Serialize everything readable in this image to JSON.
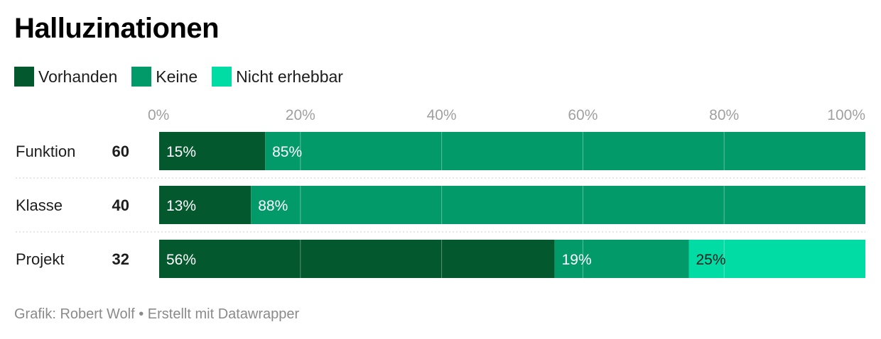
{
  "header": {
    "title": "Halluzinationen"
  },
  "legend": [
    {
      "label": "Vorhanden",
      "color": "#03582e"
    },
    {
      "label": "Keine",
      "color": "#039a6a"
    },
    {
      "label": "Nicht erhebbar",
      "color": "#01dca4"
    }
  ],
  "footer": {
    "credit": "Grafik: Robert Wolf • Erstellt mit Datawrapper"
  },
  "chart_data": {
    "type": "bar",
    "orientation": "horizontal",
    "stacked": true,
    "title": "Halluzinationen",
    "categories": [
      "Funktion",
      "Klasse",
      "Projekt"
    ],
    "counts": [
      "60",
      "40",
      "32"
    ],
    "series": [
      {
        "name": "Vorhanden",
        "color": "#03582e",
        "values": [
          15,
          13,
          56
        ],
        "labels": [
          "15%",
          "13%",
          "56%"
        ],
        "label_color": "#ffffff"
      },
      {
        "name": "Keine",
        "color": "#039a6a",
        "values": [
          85,
          88,
          19
        ],
        "labels": [
          "85%",
          "88%",
          "19%"
        ],
        "label_color": "#ffffff"
      },
      {
        "name": "Nicht erhebbar",
        "color": "#01dca4",
        "values": [
          0,
          0,
          25
        ],
        "labels": [
          "",
          "",
          "25%"
        ],
        "label_color": "#1d1d1d"
      }
    ],
    "xlim": [
      0,
      100
    ],
    "x_ticks": [
      "0%",
      "20%",
      "40%",
      "60%",
      "80%",
      "100%"
    ],
    "tick_position": "top",
    "grid": true,
    "legend_position": "top-left"
  }
}
